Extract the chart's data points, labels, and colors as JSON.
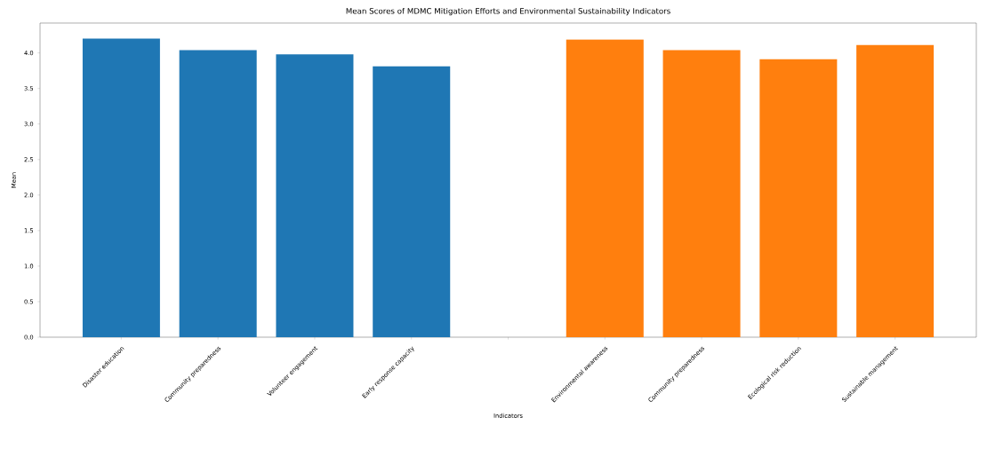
{
  "chart_data": {
    "type": "bar",
    "title": "Mean Scores of MDMC Mitigation Efforts and Environmental Sustainability Indicators",
    "xlabel": "Indicators",
    "ylabel": "Mean",
    "categories": [
      "Disaster education",
      "Community preparedness",
      "Volunteer engagement",
      "Early response capacity",
      null,
      "Environmental awareness",
      "Community preparedness",
      "Ecological risk reduction",
      "Sustainable management"
    ],
    "series": [
      {
        "color": "#1f77b4",
        "values": [
          4.2,
          4.04,
          3.98,
          3.81,
          null,
          null,
          null,
          null,
          null
        ]
      },
      {
        "color": "#ff7f0e",
        "values": [
          null,
          null,
          null,
          null,
          null,
          4.19,
          4.04,
          3.91,
          4.11
        ]
      }
    ],
    "ylim": [
      0,
      4.42
    ],
    "yticks": [
      {
        "value": 0,
        "label": "0.0"
      },
      {
        "value": 0.5,
        "label": "0.5"
      },
      {
        "value": 1,
        "label": "1.0"
      },
      {
        "value": 1.5,
        "label": "1.5"
      },
      {
        "value": 2,
        "label": "2.0"
      },
      {
        "value": 2.5,
        "label": "2.5"
      },
      {
        "value": 3,
        "label": "3.0"
      },
      {
        "value": 3.5,
        "label": "3.5"
      },
      {
        "value": 4,
        "label": "4.0"
      }
    ],
    "marker": "none"
  }
}
